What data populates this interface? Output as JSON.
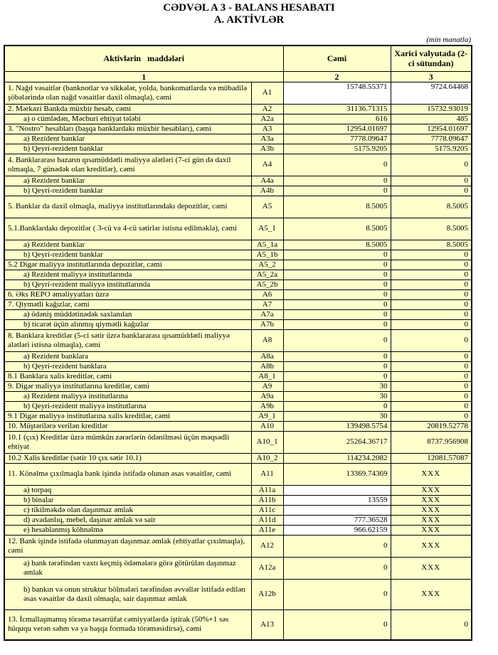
{
  "title": {
    "line1": "CƏDVƏL A 3 - BALANS HESABATI",
    "line2": "A. AKTİVLƏR"
  },
  "unit_note": "(min manatla)",
  "colors": {
    "cell_fill": "#FFFFCC",
    "white_fill": "#FFFFFF",
    "border": "#000000",
    "text": "#000000"
  },
  "table": {
    "columns": {
      "items": "Aktivlərin maddələri",
      "total": "Cəmi",
      "foreign": "Xarici valyutada (2-ci sütundan)"
    },
    "column_numbers": {
      "items": "1",
      "total": "2",
      "foreign": "3"
    },
    "rows": [
      {
        "label": "1. Nağd vəsaitlər (banknotlar və sikkələr, yolda, bankomatlarda və mübadilə şöbələrində olan nağd vəsaitlər daxil olmaqla), cəmi",
        "code": "A1",
        "total": "15748.55371",
        "foreign": "9724.64468",
        "sub": false,
        "size": "m",
        "white_total": true,
        "white_foreign": true
      },
      {
        "label": "2. Mərkəzi Bankda müxbir hesab, cəmi",
        "code": "A2",
        "total": "31136.71315",
        "foreign": "15732.93019",
        "sub": false,
        "size": "s"
      },
      {
        "label": "a) o cümlədən, Məcburi ehtiyat tələbi",
        "code": "A2a",
        "total": "616",
        "foreign": "485",
        "sub": true,
        "size": "s"
      },
      {
        "label": "3. \"Nostro\" hesabları (başqa banklardakı müxbir hesabları), cəmi",
        "code": "A3",
        "total": "12954.01697",
        "foreign": "12954.01697",
        "sub": false,
        "size": "s"
      },
      {
        "label": "a) Rezident banklar",
        "code": "A3a",
        "total": "7778.09647",
        "foreign": "7778.09647",
        "sub": true,
        "size": "s"
      },
      {
        "label": "b) Qeyri-rezident banklar",
        "code": "A3b",
        "total": "5175.9205",
        "foreign": "5175.9205",
        "sub": true,
        "size": "s"
      },
      {
        "label": "4. Banklararası bazarın qısamüddətli maliyyə alətləri (7-ci gün də daxil olmaqla, 7 günədək olan kreditlər), cəmi",
        "code": "A4",
        "total": "0",
        "foreign": "0",
        "sub": false,
        "size": "m"
      },
      {
        "label": "a) Rezident banklar",
        "code": "A4a",
        "total": "0",
        "foreign": "0",
        "sub": true,
        "size": "s"
      },
      {
        "label": "b) Qeyri-rezident banklar",
        "code": "A4b",
        "total": "0",
        "foreign": "0",
        "sub": true,
        "size": "s"
      },
      {
        "label": "5. Banklar da daxil olmaqla, maliyyə institutlarındakı depozitlər, cəmi",
        "code": "A5",
        "total": "8.5005",
        "foreign": "8.5005",
        "sub": false,
        "size": "m"
      },
      {
        "label": "5.1.Banklardakı depozitlər ( 3-cü və 4-cü sətirlər istisna edilməklə), cəmi",
        "code": "A5_1",
        "total": "8.5005",
        "foreign": "8.5005",
        "sub": false,
        "size": "m"
      },
      {
        "label": "a) Rezident banklar",
        "code": "A5_1a",
        "total": "8.5005",
        "foreign": "8.5005",
        "sub": true,
        "size": "s"
      },
      {
        "label": "b) Qeyri-rezident banklar",
        "code": "A5_1b",
        "total": "0",
        "foreign": "0",
        "sub": true,
        "size": "s"
      },
      {
        "label": "5.2 Digər maliyyə institutlarında depozitlər, cəmi",
        "code": "A5_2",
        "total": "0",
        "foreign": "0",
        "sub": false,
        "size": "s"
      },
      {
        "label": "a) Rezident maliyyə institutlarında",
        "code": "A5_2a",
        "total": "0",
        "foreign": "0",
        "sub": true,
        "size": "s"
      },
      {
        "label": "b) Qeyri-rezident maliyyə institutlarında",
        "code": "A5_2b",
        "total": "0",
        "foreign": "0",
        "sub": true,
        "size": "s"
      },
      {
        "label": "6. Əks REPO əməliyyatları üzrə",
        "code": "A6",
        "total": "0",
        "foreign": "0",
        "sub": false,
        "size": "s"
      },
      {
        "label": "7. Qiymətli kağızlar, cəmi",
        "code": "A7",
        "total": "0",
        "foreign": "0",
        "sub": false,
        "size": "s"
      },
      {
        "label": "a) ödəniş müddətinədək saxlanılan",
        "code": "A7a",
        "total": "0",
        "foreign": "0",
        "sub": true,
        "size": "s"
      },
      {
        "label": "b) ticarət üçün alınmış qiymətli kağızlar",
        "code": "A7b",
        "total": "0",
        "foreign": "0",
        "sub": true,
        "size": "s"
      },
      {
        "label": "8. Banklara kreditlər (5-ci sətir üzrə banklararası qısamüddətli maliyyə alətləri istisna olmaqla), cəmi",
        "code": "A8",
        "total": "0",
        "foreign": "0",
        "sub": false,
        "size": "m"
      },
      {
        "label": "a) Rezident banklara",
        "code": "A8a",
        "total": "0",
        "foreign": "0",
        "sub": true,
        "size": "s"
      },
      {
        "label": "b) Qeyri-rezident banklara",
        "code": "A8b",
        "total": "0",
        "foreign": "0",
        "sub": true,
        "size": "s"
      },
      {
        "label": "8.1 Banklara xalis kreditlər, cəmi",
        "code": "A8_1",
        "total": "0",
        "foreign": "0",
        "sub": false,
        "size": "s"
      },
      {
        "label": "9. Digər maliyyə institutlarına kreditlər, cəmi",
        "code": "A9",
        "total": "30",
        "foreign": "0",
        "sub": false,
        "size": "s"
      },
      {
        "label": "a) Rezident maliyyə institutlarına",
        "code": "A9a",
        "total": "30",
        "foreign": "0",
        "sub": true,
        "size": "s"
      },
      {
        "label": "b) Qeyri-rezident maliyyə institutlarına",
        "code": "A9b",
        "total": "0",
        "foreign": "0",
        "sub": true,
        "size": "s"
      },
      {
        "label": "9.1 Digər maliyyə institutlarına xalis kreditlər, cəmi",
        "code": "A9_1",
        "total": "30",
        "foreign": "0",
        "sub": false,
        "size": "s"
      },
      {
        "label": "10. Müştərilərə verilən kreditlər",
        "code": "A10",
        "total": "139498.5754",
        "foreign": "20819.52778",
        "sub": false,
        "size": "s"
      },
      {
        "label": "10.1 (çıx) Kreditlər üzrə mümkün zərərlərin ödənilməsi üçün məqsədli ehtiyat",
        "code": "A10_1",
        "total": "25264.36717",
        "foreign": "8737.956908",
        "sub": false,
        "size": "m"
      },
      {
        "label": "10.2 Xalis kreditlər (sətir 10 çıx sətir 10.1)",
        "code": "A10_2",
        "total": "114234.2082",
        "foreign": "12081.57087",
        "sub": false,
        "size": "s"
      },
      {
        "label": "11. Könəlmə çıxılmaqla bank işində istifadə olunan əsas vəsaitlər, cəmi",
        "code": "A11",
        "total": "13369.74369",
        "foreign": "XXX",
        "sub": false,
        "size": "m"
      },
      {
        "label": "a) torpaq",
        "code": "A11a",
        "total": "",
        "foreign": "XXX",
        "sub": true,
        "size": "s",
        "white_total": true
      },
      {
        "label": "b) binalar",
        "code": "A11b",
        "total": "13559",
        "foreign": "XXX",
        "sub": true,
        "size": "s",
        "white_total": true
      },
      {
        "label": "c) tikilməkdə olan daşınmaz əmlak",
        "code": "A11c",
        "total": "",
        "foreign": "XXX",
        "sub": true,
        "size": "s",
        "white_total": true
      },
      {
        "label": "d) avadanlıq, mebel, daşınar əmlak və sair",
        "code": "A11d",
        "total": "777.36528",
        "foreign": "XXX",
        "sub": true,
        "size": "s",
        "white_total": true
      },
      {
        "label": "e) hesablanmış köhnəlmə",
        "code": "A11e",
        "total": "966.62159",
        "foreign": "XXX",
        "sub": true,
        "size": "s",
        "white_total": true
      },
      {
        "label": "12. Bank işində istifadə olunmayan daşınmaz əmlak (ehtiyatlar çıxılmaqla), cəmi",
        "code": "A12",
        "total": "0",
        "foreign": "XXX",
        "sub": false,
        "size": "m"
      },
      {
        "label": "a) bank tərəfindən vaxtı keçmiş ödəmələrə görə götürülən daşınmaz əmlak",
        "code": "A12a",
        "total": "0",
        "foreign": "XXX",
        "sub": true,
        "size": "m"
      },
      {
        "label": "b) bankın və onun struktur bölmələri tərəfindən əvvəllər istifadə edilən əsas vəsaitlər də daxil olmaqla, sair daşınmaz əmlak",
        "code": "A12b",
        "total": "0",
        "foreign": "XXX",
        "sub": true,
        "size": "l"
      },
      {
        "label": "13. İcmallaşmamış törəmə təsərrüfat cəmiyyətlərdə iştirak (50%+1 səs hüququ verən səhm və ya başqa formada törəməsidirsə), cəmi",
        "code": "A13",
        "total": "0",
        "foreign": "0",
        "sub": false,
        "size": "l"
      }
    ]
  }
}
